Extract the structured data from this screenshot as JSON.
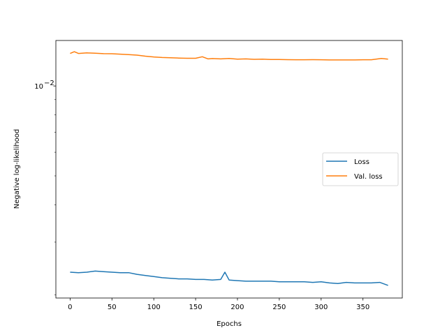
{
  "chart_data": {
    "type": "line",
    "xlabel": "Epochs",
    "ylabel": "Negative log-likelihood",
    "xlim": [
      -17,
      397
    ],
    "ylim": [
      0.00195,
      0.0142
    ],
    "yscale": "log",
    "x_ticks": [
      0,
      50,
      100,
      150,
      200,
      250,
      300,
      350
    ],
    "y_ticks": [
      {
        "value": 0.01,
        "label_base": "10",
        "label_exp": "−2"
      }
    ],
    "grid": false,
    "legend": {
      "placement": "center-right"
    },
    "series": [
      {
        "name": "Loss",
        "color": "#1f77b4",
        "x": [
          0,
          10,
          20,
          30,
          40,
          50,
          60,
          70,
          80,
          90,
          100,
          110,
          120,
          130,
          140,
          150,
          160,
          170,
          180,
          185,
          190,
          200,
          210,
          220,
          230,
          240,
          250,
          260,
          270,
          280,
          290,
          300,
          310,
          320,
          330,
          340,
          350,
          360,
          370,
          380
        ],
        "values": [
          0.00238,
          0.00237,
          0.00238,
          0.0024,
          0.00239,
          0.00238,
          0.00237,
          0.00237,
          0.00234,
          0.00232,
          0.0023,
          0.00228,
          0.00227,
          0.00226,
          0.00226,
          0.00225,
          0.00225,
          0.00224,
          0.00225,
          0.00238,
          0.00224,
          0.00223,
          0.00222,
          0.00222,
          0.00222,
          0.00222,
          0.00221,
          0.00221,
          0.00221,
          0.00221,
          0.0022,
          0.00221,
          0.00219,
          0.00218,
          0.0022,
          0.00219,
          0.00219,
          0.00219,
          0.0022,
          0.00215
        ]
      },
      {
        "name": "Val. loss",
        "color": "#ff7f0e",
        "x": [
          0,
          5,
          10,
          20,
          30,
          40,
          50,
          60,
          70,
          80,
          90,
          100,
          110,
          120,
          130,
          140,
          150,
          158,
          165,
          170,
          180,
          190,
          200,
          210,
          220,
          230,
          240,
          250,
          260,
          270,
          280,
          290,
          300,
          310,
          320,
          330,
          340,
          350,
          360,
          372,
          380
        ],
        "values": [
          0.01285,
          0.01302,
          0.01285,
          0.0129,
          0.01287,
          0.01283,
          0.01282,
          0.01278,
          0.01274,
          0.01268,
          0.01258,
          0.01251,
          0.01245,
          0.01243,
          0.0124,
          0.01238,
          0.01238,
          0.01253,
          0.01232,
          0.01235,
          0.01232,
          0.01236,
          0.0123,
          0.01232,
          0.01228,
          0.0123,
          0.01226,
          0.01226,
          0.01225,
          0.01224,
          0.01224,
          0.01225,
          0.01224,
          0.01222,
          0.01222,
          0.01222,
          0.01222,
          0.01224,
          0.01224,
          0.01236,
          0.0123
        ]
      }
    ]
  }
}
